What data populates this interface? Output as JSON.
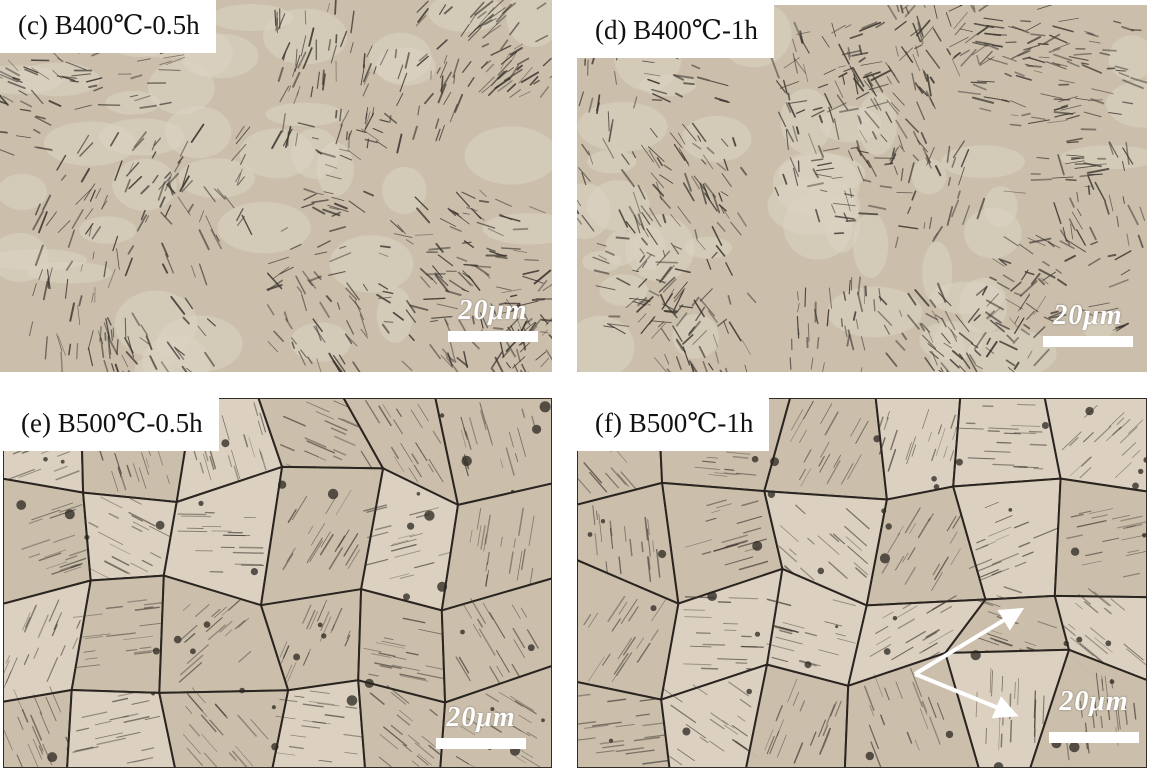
{
  "colors": {
    "background": "#cbbfac",
    "light_phase": "#ddd3c2",
    "dark_phase": "#3c3630",
    "grain_boundary": "#2a2520",
    "marker": "#ffffff"
  },
  "panels": [
    {
      "id": "c",
      "label": "(c) B400℃-0.5h",
      "scale_label": "20μm",
      "style": "fine-bainite"
    },
    {
      "id": "d",
      "label": "(d) B400℃-1h",
      "scale_label": "20μm",
      "style": "fine-bainite"
    },
    {
      "id": "e",
      "label": "(e) B500℃-0.5h",
      "scale_label": "20μm",
      "style": "coarse-grains"
    },
    {
      "id": "f",
      "label": "(f) B500℃-1h",
      "scale_label": "20μm",
      "style": "coarse-grains",
      "arrows": "white-double-arrow"
    }
  ]
}
